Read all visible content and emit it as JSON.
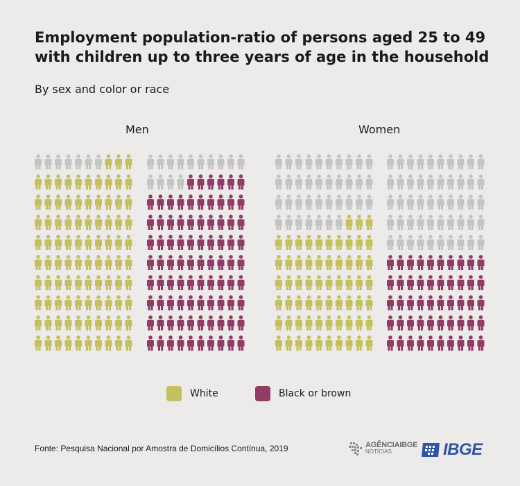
{
  "title": "Employment population-ratio of persons aged 25 to 49 with children up to three years of age in the household",
  "subtitle": "By sex and color or race",
  "source": "Fonte: Pesquisa Nacional por Amostra de Domicílios Contínua, 2019",
  "logos": {
    "agencia_top": "AGÊNCIAIBGE",
    "agencia_bottom": "NOTÍCIAS",
    "ibge": "IBGE"
  },
  "colors": {
    "white": "#c4c05e",
    "black_or_brown": "#913b67",
    "unfilled": "#c4c4c4",
    "background": "#ecebe9"
  },
  "legend": [
    {
      "label": "White",
      "color": "#c4c05e"
    },
    {
      "label": "Black or brown",
      "color": "#913b67"
    }
  ],
  "chart_data": {
    "type": "waffle",
    "icons_per_block": 100,
    "groups": [
      {
        "label": "Men",
        "series": [
          {
            "name": "White",
            "value": 93,
            "color": "#c4c05e"
          },
          {
            "name": "Black or brown",
            "value": 86,
            "color": "#913b67"
          }
        ]
      },
      {
        "label": "Women",
        "series": [
          {
            "name": "White",
            "value": 63,
            "color": "#c4c05e"
          },
          {
            "name": "Black or brown",
            "value": 50,
            "color": "#913b67"
          }
        ]
      }
    ]
  }
}
